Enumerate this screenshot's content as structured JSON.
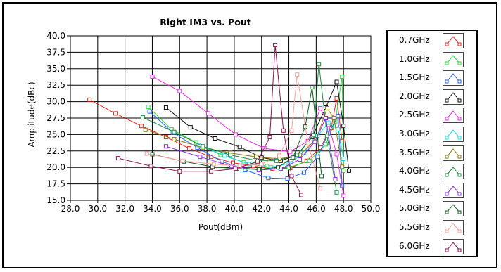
{
  "chart_data": {
    "type": "line",
    "title": "Right IM3 vs. Pout",
    "xlabel": "Pout(dBm)",
    "ylabel": "Amplitude(dBc)",
    "xlim": [
      28.0,
      50.0
    ],
    "ylim": [
      15.0,
      40.0
    ],
    "x_ticks": [
      "28.0",
      "30.0",
      "32.0",
      "34.0",
      "36.0",
      "38.0",
      "40.0",
      "42.0",
      "44.0",
      "46.0",
      "48.0",
      "50.0"
    ],
    "y_ticks": [
      "15.0",
      "17.5",
      "20.0",
      "22.5",
      "25.0",
      "27.5",
      "30.0",
      "32.5",
      "35.0",
      "37.5",
      "40.0"
    ],
    "grid": true,
    "legend_position": "right",
    "series": [
      {
        "name": "0.7GHz",
        "color": "#e8231e",
        "points": [
          [
            29.4,
            30.3
          ],
          [
            31.3,
            28.2
          ],
          [
            33.2,
            26.3
          ],
          [
            35.0,
            24.6
          ],
          [
            36.7,
            22.9
          ],
          [
            38.3,
            21.6
          ],
          [
            39.9,
            20.7
          ],
          [
            41.4,
            20.2
          ],
          [
            42.8,
            19.8
          ],
          [
            44.1,
            19.9
          ],
          [
            45.3,
            21.0
          ],
          [
            46.3,
            23.0
          ],
          [
            47.1,
            26.0
          ],
          [
            47.5,
            30.5
          ],
          [
            47.9,
            24.0
          ]
        ]
      },
      {
        "name": "1.0GHz",
        "color": "#27d63b",
        "points": [
          [
            33.7,
            29.2
          ],
          [
            35.4,
            25.8
          ],
          [
            37.2,
            23.8
          ],
          [
            39.0,
            21.9
          ],
          [
            40.7,
            20.8
          ],
          [
            42.4,
            20.2
          ],
          [
            44.0,
            20.0
          ],
          [
            45.5,
            21.0
          ],
          [
            46.7,
            23.5
          ],
          [
            47.4,
            27.0
          ],
          [
            47.9,
            33.8
          ],
          [
            48.0,
            19.5
          ]
        ]
      },
      {
        "name": "1.5GHz",
        "color": "#1f5ff0",
        "points": [
          [
            33.8,
            28.5
          ],
          [
            35.5,
            25.3
          ],
          [
            37.3,
            23.0
          ],
          [
            39.1,
            20.9
          ],
          [
            40.8,
            19.6
          ],
          [
            42.5,
            18.4
          ],
          [
            43.9,
            18.3
          ],
          [
            45.1,
            19.2
          ],
          [
            46.1,
            21.6
          ],
          [
            46.9,
            25.2
          ],
          [
            47.6,
            27.8
          ],
          [
            47.9,
            17.2
          ]
        ]
      },
      {
        "name": "2.0GHz",
        "color": "#111111",
        "points": [
          [
            35.0,
            29.1
          ],
          [
            36.8,
            26.1
          ],
          [
            38.6,
            24.4
          ],
          [
            40.4,
            23.1
          ],
          [
            42.0,
            21.5
          ],
          [
            43.4,
            21.0
          ],
          [
            44.6,
            21.9
          ],
          [
            45.7,
            24.6
          ],
          [
            46.7,
            29.1
          ],
          [
            47.5,
            33.0
          ],
          [
            48.0,
            26.3
          ],
          [
            48.4,
            19.5
          ]
        ]
      },
      {
        "name": "2.5GHz",
        "color": "#e62fe6",
        "points": [
          [
            34.0,
            33.8
          ],
          [
            36.0,
            31.6
          ],
          [
            38.1,
            28.2
          ],
          [
            40.1,
            25.0
          ],
          [
            42.2,
            22.9
          ],
          [
            44.1,
            22.4
          ],
          [
            45.4,
            24.0
          ],
          [
            46.3,
            29.0
          ],
          [
            46.9,
            26.5
          ],
          [
            47.5,
            22.0
          ],
          [
            48.0,
            15.7
          ]
        ]
      },
      {
        "name": "3.0GHz",
        "color": "#18dbe8",
        "points": [
          [
            37.4,
            23.4
          ],
          [
            39.3,
            21.8
          ],
          [
            41.1,
            20.5
          ],
          [
            42.7,
            20.0
          ],
          [
            44.0,
            20.6
          ],
          [
            45.1,
            22.2
          ],
          [
            46.1,
            24.8
          ],
          [
            46.9,
            26.8
          ],
          [
            47.6,
            25.8
          ],
          [
            48.0,
            21.3
          ]
        ]
      },
      {
        "name": "3.5GHz",
        "color": "#8c7a17",
        "points": [
          [
            33.5,
            25.7
          ],
          [
            35.6,
            24.3
          ],
          [
            37.7,
            23.0
          ],
          [
            39.7,
            22.2
          ],
          [
            41.6,
            21.6
          ],
          [
            43.3,
            21.3
          ],
          [
            44.8,
            21.9
          ],
          [
            46.0,
            24.3
          ],
          [
            46.8,
            29.0
          ],
          [
            47.3,
            27.5
          ],
          [
            47.9,
            20.1
          ]
        ]
      },
      {
        "name": "4.0GHz",
        "color": "#168a3e",
        "points": [
          [
            33.3,
            27.6
          ],
          [
            35.6,
            25.4
          ],
          [
            37.7,
            23.2
          ],
          [
            39.7,
            21.9
          ],
          [
            41.5,
            21.1
          ],
          [
            43.1,
            21.0
          ],
          [
            44.6,
            21.9
          ],
          [
            45.8,
            24.9
          ],
          [
            46.2,
            35.7
          ],
          [
            46.8,
            24.8
          ],
          [
            47.5,
            16.2
          ]
        ]
      },
      {
        "name": "4.5GHz",
        "color": "#8a2be2",
        "points": [
          [
            35.0,
            23.2
          ],
          [
            37.5,
            21.6
          ],
          [
            39.8,
            20.2
          ],
          [
            41.8,
            19.6
          ],
          [
            43.4,
            19.8
          ],
          [
            44.8,
            21.2
          ],
          [
            45.9,
            23.9
          ],
          [
            46.7,
            27.5
          ],
          [
            47.4,
            18.2
          ]
        ]
      },
      {
        "name": "5.0GHz",
        "color": "#0f5f22",
        "points": [
          [
            34.0,
            22.0
          ],
          [
            36.3,
            20.9
          ],
          [
            38.4,
            20.1
          ],
          [
            40.2,
            19.8
          ],
          [
            41.8,
            19.7
          ],
          [
            43.2,
            20.0
          ],
          [
            44.3,
            21.5
          ],
          [
            45.2,
            26.2
          ],
          [
            45.7,
            32.2
          ],
          [
            46.4,
            18.7
          ]
        ]
      },
      {
        "name": "5.5GHz",
        "color": "#f4a09c",
        "points": [
          [
            33.6,
            22.1
          ],
          [
            36.2,
            21.0
          ],
          [
            38.5,
            20.5
          ],
          [
            40.4,
            20.2
          ],
          [
            42.0,
            20.5
          ],
          [
            43.3,
            21.8
          ],
          [
            44.2,
            25.6
          ],
          [
            44.6,
            34.1
          ],
          [
            45.4,
            23.7
          ],
          [
            46.3,
            16.8
          ]
        ]
      },
      {
        "name": "6.0GHz",
        "color": "#8b1450",
        "points": [
          [
            31.5,
            21.4
          ],
          [
            33.9,
            20.2
          ],
          [
            36.0,
            19.4
          ],
          [
            38.3,
            19.4
          ],
          [
            40.1,
            19.8
          ],
          [
            41.7,
            20.9
          ],
          [
            42.6,
            24.6
          ],
          [
            43.0,
            38.6
          ],
          [
            43.6,
            25.6
          ],
          [
            44.2,
            18.7
          ],
          [
            44.9,
            15.8
          ]
        ]
      }
    ]
  }
}
